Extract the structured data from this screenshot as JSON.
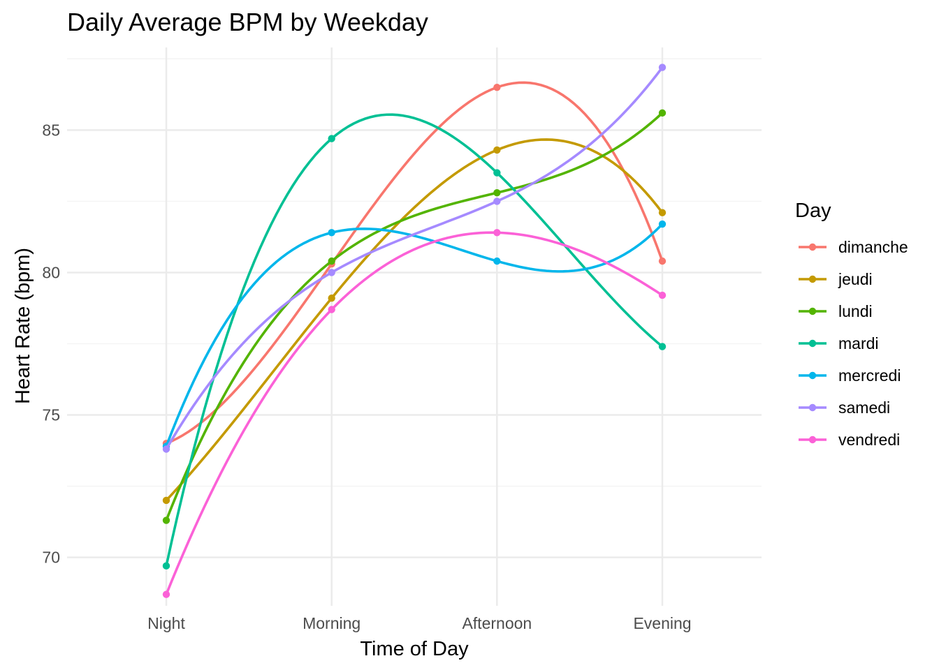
{
  "chart_data": {
    "type": "line",
    "title": "Daily Average BPM by Weekday",
    "xlabel": "Time of Day",
    "ylabel": "Heart Rate (bpm)",
    "categories": [
      "Night",
      "Morning",
      "Afternoon",
      "Evening"
    ],
    "ylim": [
      68.3,
      87.9
    ],
    "yticks": [
      70,
      75,
      80,
      85
    ],
    "grid": true,
    "smoothed": true,
    "legend": {
      "title": "Day",
      "position": "right"
    },
    "series": [
      {
        "name": "dimanche",
        "color": "#F8766D",
        "values": [
          74.0,
          80.3,
          86.5,
          80.4
        ]
      },
      {
        "name": "jeudi",
        "color": "#C49A00",
        "values": [
          72.0,
          79.1,
          84.3,
          82.1
        ]
      },
      {
        "name": "lundi",
        "color": "#53B400",
        "values": [
          71.3,
          80.4,
          82.8,
          85.6
        ]
      },
      {
        "name": "mardi",
        "color": "#00C094",
        "values": [
          69.7,
          84.7,
          83.5,
          77.4
        ]
      },
      {
        "name": "mercredi",
        "color": "#00B6EB",
        "values": [
          73.9,
          81.4,
          80.4,
          81.7
        ]
      },
      {
        "name": "samedi",
        "color": "#A58AFF",
        "values": [
          73.8,
          80.0,
          82.5,
          87.2
        ]
      },
      {
        "name": "vendredi",
        "color": "#FB61D7",
        "values": [
          68.7,
          78.7,
          81.4,
          79.2
        ]
      }
    ]
  }
}
